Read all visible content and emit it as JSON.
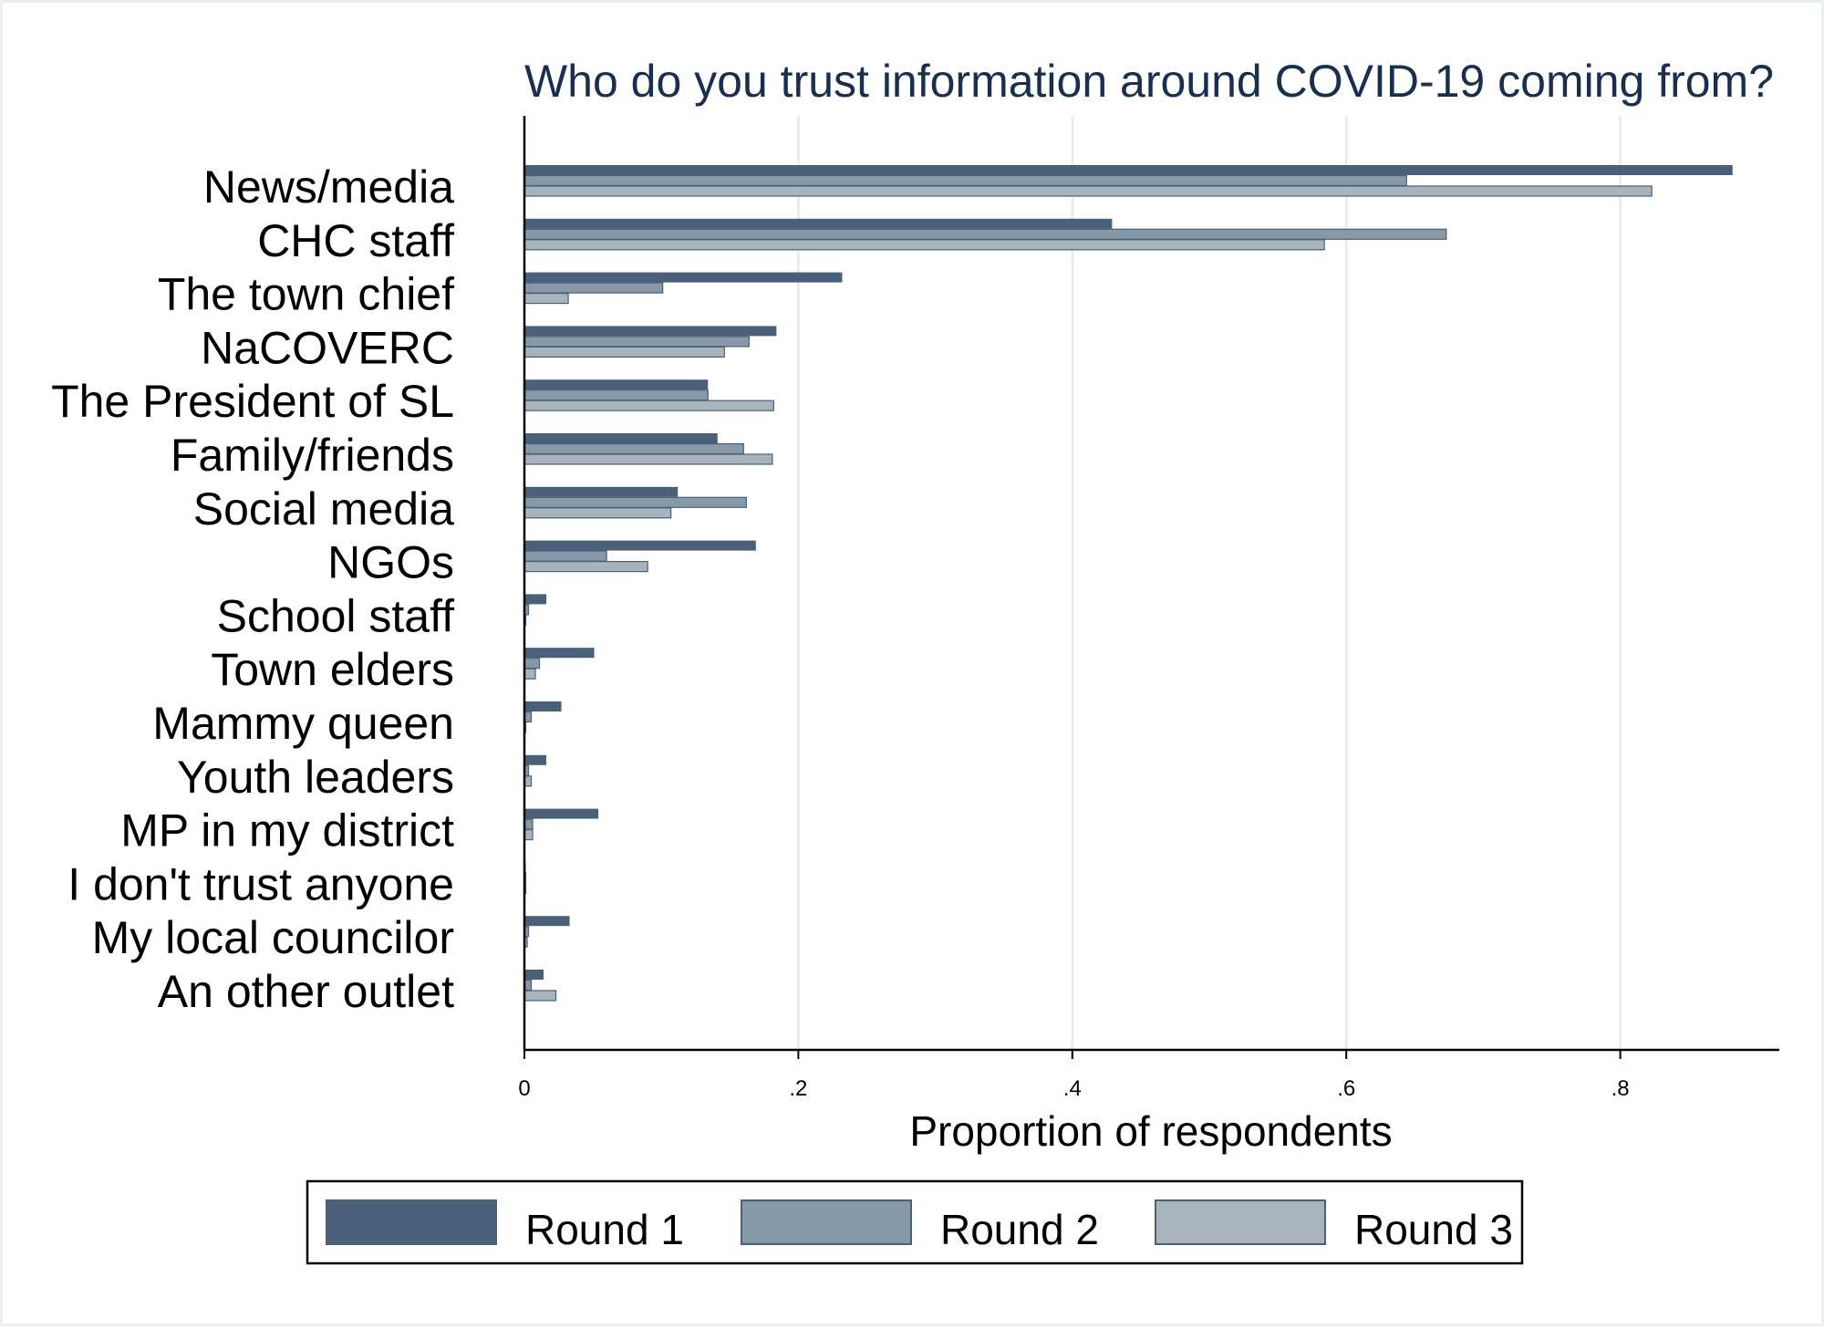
{
  "chart_data": {
    "type": "bar",
    "orientation": "horizontal",
    "title": "Who do you trust information around COVID-19 coming from?",
    "xlabel": "Proportion of respondents",
    "ylabel": "",
    "xlim": [
      0,
      0.915
    ],
    "xticks": [
      0,
      0.2,
      0.4,
      0.6,
      0.8
    ],
    "xtick_labels": [
      "0",
      ".2",
      ".4",
      ".6",
      ".8"
    ],
    "grid": "vertical",
    "legend_position": "bottom",
    "categories": [
      "News/media",
      "CHC staff",
      "The town chief",
      "NaCOVERC",
      "The President of SL",
      "Family/friends",
      "Social media",
      "NGOs",
      "School staff",
      "Town elders",
      "Mammy queen",
      "Youth leaders",
      "MP in my district",
      "I don't trust anyone",
      "My local councilor",
      "An other outlet"
    ],
    "series": [
      {
        "name": "Round 1",
        "color": "#4a6079",
        "values": [
          0.882,
          0.429,
          0.232,
          0.184,
          0.134,
          0.141,
          0.112,
          0.169,
          0.016,
          0.051,
          0.027,
          0.016,
          0.054,
          0.001,
          0.033,
          0.014
        ]
      },
      {
        "name": "Round 2",
        "color": "#8798a7",
        "values": [
          0.644,
          0.673,
          0.101,
          0.164,
          0.134,
          0.16,
          0.162,
          0.06,
          0.003,
          0.011,
          0.005,
          0.003,
          0.006,
          0.001,
          0.003,
          0.005
        ]
      },
      {
        "name": "Round 3",
        "color": "#a7b3bd",
        "values": [
          0.823,
          0.584,
          0.032,
          0.146,
          0.182,
          0.181,
          0.107,
          0.09,
          0.001,
          0.008,
          0.001,
          0.005,
          0.006,
          0.001,
          0.002,
          0.023
        ]
      }
    ]
  }
}
